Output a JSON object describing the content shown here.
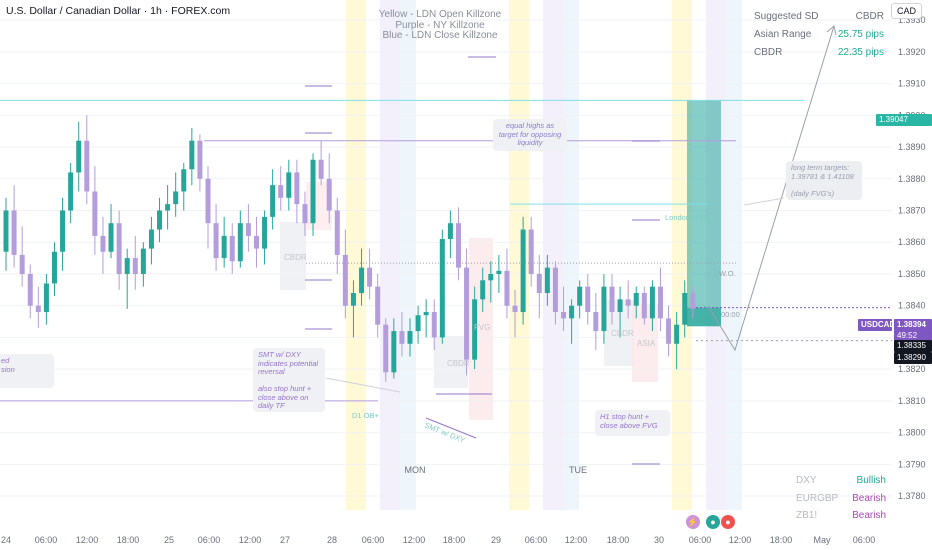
{
  "title": "U.S. Dollar / Canadian Dollar · 1h · FOREX.com",
  "currency_button": "CAD",
  "killzone_legend": [
    "Yellow - LDN Open Killzone",
    "Purple - NY Killzone",
    "Blue - LDN Close Killzone"
  ],
  "stats_table": [
    {
      "label": "Suggested SD",
      "value": "CBDR",
      "color": "#6a6f7c"
    },
    {
      "label": "Asian Range",
      "value": "25.75 pips",
      "color": "#22ab94"
    },
    {
      "label": "CBDR",
      "value": "22.35 pips",
      "color": "#22ab94"
    }
  ],
  "correlations": [
    {
      "label": "DXY",
      "value": "Bullish",
      "color": "#22ab94"
    },
    {
      "label": "EURGBP",
      "value": "Bearish",
      "color": "#ab47bc"
    },
    {
      "label": "ZB1!",
      "value": "Bearish",
      "color": "#ab47bc"
    }
  ],
  "annotations": {
    "equal_highs": "equal highs as target for opposing liquidity",
    "long_term": "long term targets: 1.39781 & 1.41108\n\n(daily FVG's)",
    "london_high": "London High",
    "wo": "W.O.",
    "midnight": "00:00",
    "smt_note": "SMT w/ DXY indicates potential reversal\n\nalso stop hunt + close above on daily TF",
    "d1_ob": "D1 OB+",
    "smt_line": "SMT w/ DXY",
    "h1_note": "H1 stop hunt + close above FVG",
    "left_note": "ed\nsion",
    "cbdr_box1": "CBDR",
    "cbdr_box2": "CBDR",
    "cbdr_box3": "CBDR",
    "asia_box": "ASIA",
    "fvg_box": "FVG",
    "mon": "MON",
    "tue": "TUE"
  },
  "price_labels": {
    "level_1": "1.39047",
    "symbol": "USDCAD",
    "last": "1.38394",
    "countdown": "49:52",
    "level_2": "1.38335",
    "level_3": "1.38290"
  },
  "chart_data": {
    "type": "candlestick",
    "title": "U.S. Dollar / Canadian Dollar · 1h · FOREX.com",
    "y_ticks": [
      1.378,
      1.379,
      1.38,
      1.381,
      1.382,
      1.383,
      1.384,
      1.385,
      1.386,
      1.387,
      1.388,
      1.389,
      1.39,
      1.391,
      1.392,
      1.393
    ],
    "ylim": [
      1.37756,
      1.39332
    ],
    "x_ticks": [
      "24",
      "06:00",
      "12:00",
      "18:00",
      "25",
      "06:00",
      "12:00",
      "27",
      "28",
      "06:00",
      "12:00",
      "18:00",
      "29",
      "06:00",
      "12:00",
      "18:00",
      "30",
      "06:00",
      "12:00",
      "18:00",
      "May",
      "06:00"
    ],
    "bullish_color": "#26a69a",
    "bearish_color": "#b39ddb",
    "horizontal_levels": [
      1.39047,
      1.3892,
      1.3872,
      1.38534,
      1.38335,
      1.3829
    ],
    "candles": [
      [
        1.3857,
        1.3874,
        1.3851,
        1.387
      ],
      [
        1.387,
        1.3878,
        1.3852,
        1.3856
      ],
      [
        1.3856,
        1.3865,
        1.3846,
        1.385
      ],
      [
        1.385,
        1.3853,
        1.3836,
        1.384
      ],
      [
        1.384,
        1.3846,
        1.3833,
        1.3838
      ],
      [
        1.3838,
        1.385,
        1.3834,
        1.3847
      ],
      [
        1.3847,
        1.386,
        1.3843,
        1.3857
      ],
      [
        1.3857,
        1.3874,
        1.3851,
        1.387
      ],
      [
        1.387,
        1.3885,
        1.3866,
        1.3882
      ],
      [
        1.3882,
        1.3898,
        1.3876,
        1.3892
      ],
      [
        1.3892,
        1.39,
        1.3872,
        1.3876
      ],
      [
        1.3876,
        1.3884,
        1.3856,
        1.3862
      ],
      [
        1.3862,
        1.3868,
        1.385,
        1.3857
      ],
      [
        1.3857,
        1.3872,
        1.3855,
        1.3866
      ],
      [
        1.3866,
        1.387,
        1.3845,
        1.385
      ],
      [
        1.385,
        1.3858,
        1.3839,
        1.3855
      ],
      [
        1.3855,
        1.3862,
        1.3845,
        1.385
      ],
      [
        1.385,
        1.386,
        1.3846,
        1.3858
      ],
      [
        1.3858,
        1.3868,
        1.3853,
        1.3864
      ],
      [
        1.3864,
        1.3874,
        1.386,
        1.387
      ],
      [
        1.387,
        1.3878,
        1.3864,
        1.3872
      ],
      [
        1.3872,
        1.3882,
        1.3868,
        1.3876
      ],
      [
        1.3876,
        1.3885,
        1.387,
        1.3883
      ],
      [
        1.3883,
        1.3896,
        1.3878,
        1.3892
      ],
      [
        1.3892,
        1.3894,
        1.3876,
        1.388
      ],
      [
        1.388,
        1.3884,
        1.3858,
        1.3866
      ],
      [
        1.3866,
        1.3872,
        1.3851,
        1.3855
      ],
      [
        1.3855,
        1.3868,
        1.3852,
        1.3862
      ],
      [
        1.3862,
        1.3866,
        1.385,
        1.3854
      ],
      [
        1.3854,
        1.387,
        1.3852,
        1.3866
      ],
      [
        1.3866,
        1.3872,
        1.3857,
        1.3862
      ],
      [
        1.3862,
        1.3868,
        1.3852,
        1.3858
      ],
      [
        1.3858,
        1.387,
        1.3853,
        1.3868
      ],
      [
        1.3868,
        1.3883,
        1.3864,
        1.3878
      ],
      [
        1.3878,
        1.3884,
        1.387,
        1.3874
      ],
      [
        1.3874,
        1.3886,
        1.387,
        1.3882
      ],
      [
        1.3882,
        1.3886,
        1.3866,
        1.3872
      ],
      [
        1.3872,
        1.3876,
        1.3862,
        1.3866
      ],
      [
        1.3866,
        1.3888,
        1.3862,
        1.3886
      ],
      [
        1.3886,
        1.3892,
        1.3878,
        1.388
      ],
      [
        1.388,
        1.3888,
        1.3866,
        1.387
      ],
      [
        1.387,
        1.3874,
        1.385,
        1.3856
      ],
      [
        1.3856,
        1.3864,
        1.3836,
        1.384
      ],
      [
        1.384,
        1.3848,
        1.383,
        1.3844
      ],
      [
        1.3844,
        1.3858,
        1.384,
        1.3852
      ],
      [
        1.3852,
        1.3858,
        1.3842,
        1.3846
      ],
      [
        1.3846,
        1.385,
        1.383,
        1.3834
      ],
      [
        1.3834,
        1.3836,
        1.3816,
        1.3819
      ],
      [
        1.3819,
        1.3836,
        1.3817,
        1.3832
      ],
      [
        1.3832,
        1.3838,
        1.3824,
        1.3828
      ],
      [
        1.3828,
        1.3836,
        1.3824,
        1.3832
      ],
      [
        1.3832,
        1.384,
        1.3828,
        1.3837
      ],
      [
        1.3837,
        1.3842,
        1.383,
        1.3838
      ],
      [
        1.3838,
        1.3842,
        1.3826,
        1.383
      ],
      [
        1.383,
        1.3864,
        1.3828,
        1.3861
      ],
      [
        1.3861,
        1.387,
        1.3855,
        1.3866
      ],
      [
        1.3866,
        1.3871,
        1.3848,
        1.3852
      ],
      [
        1.3852,
        1.3858,
        1.3818,
        1.3823
      ],
      [
        1.3823,
        1.3846,
        1.382,
        1.3842
      ],
      [
        1.3842,
        1.3852,
        1.3838,
        1.3848
      ],
      [
        1.3848,
        1.3854,
        1.3841,
        1.385
      ],
      [
        1.385,
        1.3856,
        1.3844,
        1.3851
      ],
      [
        1.3851,
        1.3858,
        1.3836,
        1.384
      ],
      [
        1.384,
        1.3845,
        1.383,
        1.3838
      ],
      [
        1.3838,
        1.3868,
        1.3834,
        1.3864
      ],
      [
        1.3864,
        1.3868,
        1.3846,
        1.385
      ],
      [
        1.385,
        1.3856,
        1.3836,
        1.3844
      ],
      [
        1.3844,
        1.3856,
        1.384,
        1.3852
      ],
      [
        1.3852,
        1.3854,
        1.3834,
        1.3838
      ],
      [
        1.3838,
        1.3846,
        1.3832,
        1.3836
      ],
      [
        1.3836,
        1.3842,
        1.3828,
        1.384
      ],
      [
        1.384,
        1.3848,
        1.3836,
        1.3846
      ],
      [
        1.3846,
        1.385,
        1.3834,
        1.3838
      ],
      [
        1.3838,
        1.3844,
        1.3826,
        1.3832
      ],
      [
        1.3832,
        1.385,
        1.3828,
        1.3846
      ],
      [
        1.3846,
        1.385,
        1.3834,
        1.3838
      ],
      [
        1.3838,
        1.3846,
        1.383,
        1.3842
      ],
      [
        1.3842,
        1.3848,
        1.3836,
        1.384
      ],
      [
        1.384,
        1.3846,
        1.3836,
        1.3844
      ],
      [
        1.3844,
        1.3846,
        1.3834,
        1.3836
      ],
      [
        1.3836,
        1.3848,
        1.3832,
        1.3846
      ],
      [
        1.3846,
        1.3852,
        1.3832,
        1.3836
      ],
      [
        1.3836,
        1.384,
        1.3824,
        1.3828
      ],
      [
        1.3828,
        1.3838,
        1.382,
        1.3834
      ],
      [
        1.3834,
        1.3848,
        1.383,
        1.3844
      ],
      [
        1.3844,
        1.3846,
        1.3836,
        1.3839
      ]
    ]
  }
}
